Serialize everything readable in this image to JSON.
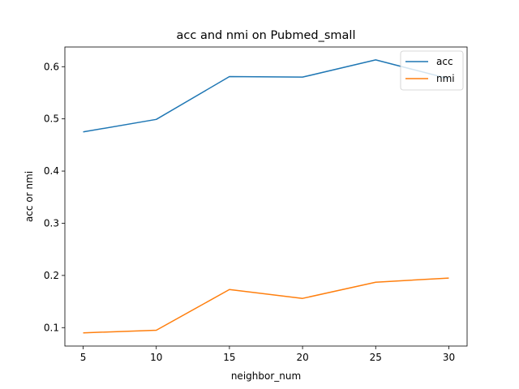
{
  "chart_data": {
    "type": "line",
    "title": "acc and nmi on Pubmed_small",
    "xlabel": "neighbor_num",
    "ylabel": "acc or nmi",
    "x": [
      5,
      10,
      15,
      20,
      25,
      30
    ],
    "xticks": [
      5,
      10,
      15,
      20,
      25,
      30
    ],
    "yticks": [
      0.1,
      0.2,
      0.3,
      0.4,
      0.5,
      0.6
    ],
    "ytick_labels": [
      "0.1",
      "0.2",
      "0.3",
      "0.4",
      "0.5",
      "0.6"
    ],
    "xlim": [
      3.75,
      31.25
    ],
    "ylim": [
      0.0647,
      0.6377
    ],
    "grid": false,
    "legend_position": "top-right",
    "series": [
      {
        "name": "acc",
        "color": "#1f77b4",
        "values": [
          0.475,
          0.499,
          0.581,
          0.58,
          0.613,
          0.577
        ]
      },
      {
        "name": "nmi",
        "color": "#ff7f0e",
        "values": [
          0.09,
          0.095,
          0.173,
          0.156,
          0.187,
          0.195
        ]
      }
    ]
  }
}
